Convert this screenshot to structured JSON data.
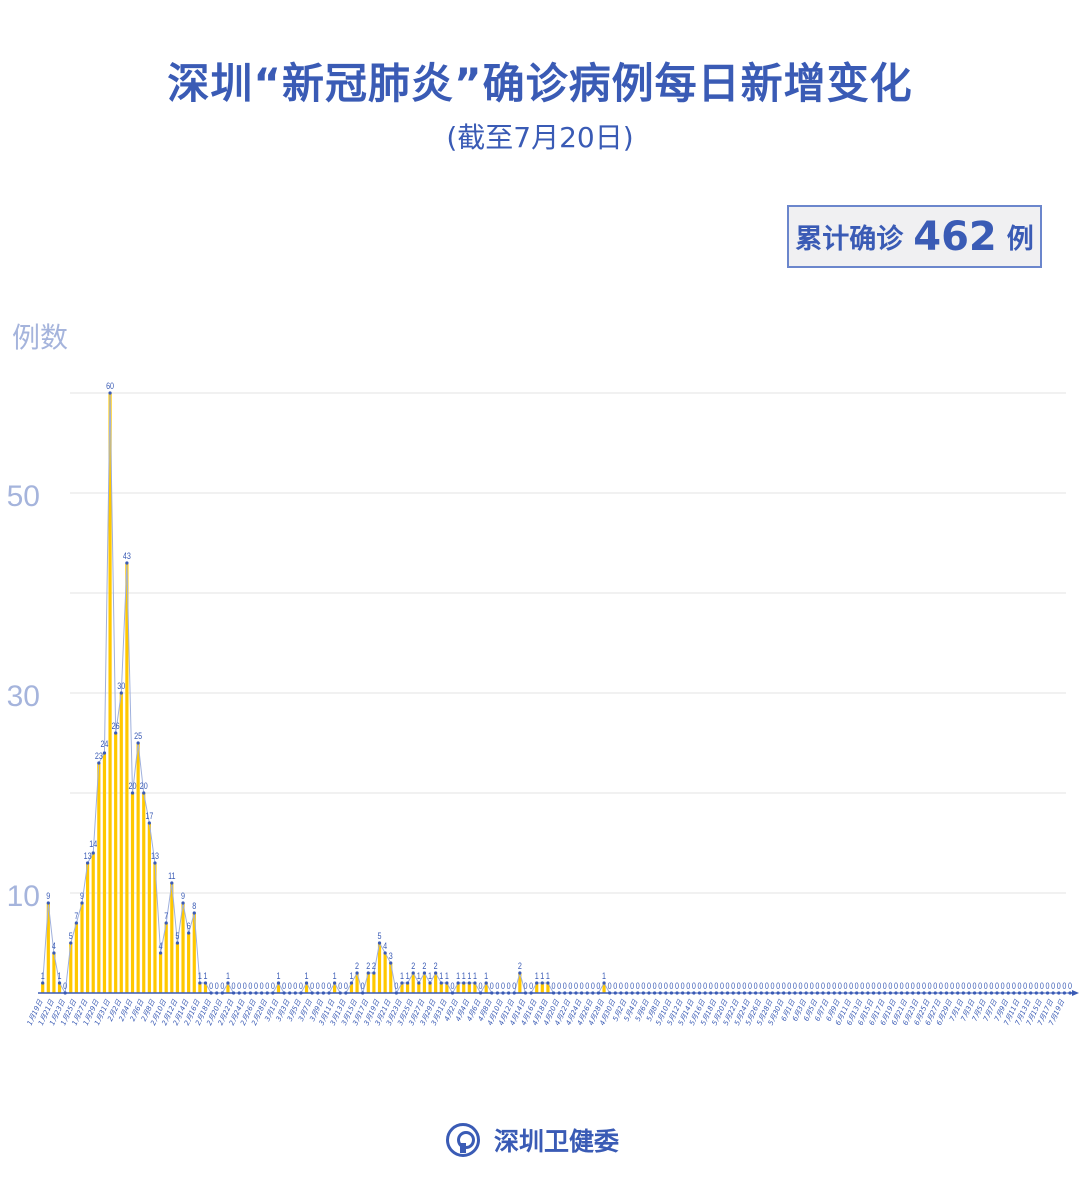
{
  "header": {
    "title": "深圳“新冠肺炎”确诊病例每日新增变化",
    "subtitle": "(截至7月20日)"
  },
  "total": {
    "label": "累计确诊",
    "value": "462",
    "unit": "例"
  },
  "footer": {
    "org": "深圳卫健委"
  },
  "colors": {
    "accent": "#3a5bb5",
    "bar": "#ffc800",
    "axis_text": "#a5b4dc",
    "grid": "#e3e3e3"
  },
  "chart_data": {
    "type": "bar",
    "ylabel": "例数",
    "ylim": [
      0,
      60
    ],
    "yticks": [
      10,
      30,
      50
    ],
    "grid": true,
    "categories": [
      "1月19日",
      "1月20日",
      "1月21日",
      "1月22日",
      "1月23日",
      "1月24日",
      "1月25日",
      "1月26日",
      "1月27日",
      "1月28日",
      "1月29日",
      "1月30日",
      "1月31日",
      "2月1日",
      "2月2日",
      "2月3日",
      "2月4日",
      "2月5日",
      "2月6日",
      "2月7日",
      "2月8日",
      "2月9日",
      "2月10日",
      "2月11日",
      "2月12日",
      "2月13日",
      "2月14日",
      "2月15日",
      "2月16日",
      "2月17日",
      "2月18日",
      "2月19日",
      "2月20日",
      "2月21日",
      "2月22日",
      "2月23日",
      "2月24日",
      "2月25日",
      "2月26日",
      "2月27日",
      "2月28日",
      "2月29日",
      "3月1日",
      "3月2日",
      "3月3日",
      "3月4日",
      "3月5日",
      "3月6日",
      "3月7日",
      "3月8日",
      "3月9日",
      "3月10日",
      "3月11日",
      "3月12日",
      "3月13日",
      "3月14日",
      "3月15日",
      "3月16日",
      "3月17日",
      "3月18日",
      "3月19日",
      "3月20日",
      "3月21日",
      "3月22日",
      "3月23日",
      "3月24日",
      "3月25日",
      "3月26日",
      "3月27日",
      "3月28日",
      "3月29日",
      "3月30日",
      "3月31日",
      "4月1日",
      "4月2日",
      "4月3日",
      "4月4日",
      "4月5日",
      "4月6日",
      "4月7日",
      "4月8日",
      "4月9日",
      "4月10日",
      "4月11日",
      "4月12日",
      "4月13日",
      "4月14日",
      "4月15日",
      "4月16日",
      "4月17日",
      "4月18日",
      "4月19日",
      "4月20日",
      "4月21日",
      "4月22日",
      "4月23日",
      "4月24日",
      "4月25日",
      "4月26日",
      "4月27日",
      "4月28日",
      "4月29日",
      "4月30日",
      "5月1日",
      "5月2日",
      "5月3日",
      "5月4日",
      "5月5日",
      "5月6日",
      "5月7日",
      "5月8日",
      "5月9日",
      "5月10日",
      "5月11日",
      "5月12日",
      "5月13日",
      "5月14日",
      "5月15日",
      "5月16日",
      "5月17日",
      "5月18日",
      "5月19日",
      "5月20日",
      "5月21日",
      "5月22日",
      "5月23日",
      "5月24日",
      "5月25日",
      "5月26日",
      "5月27日",
      "5月28日",
      "5月29日",
      "5月30日",
      "5月31日",
      "6月1日",
      "6月2日",
      "6月3日",
      "6月4日",
      "6月5日",
      "6月6日",
      "6月7日",
      "6月8日",
      "6月9日",
      "6月10日",
      "6月11日",
      "6月12日",
      "6月13日",
      "6月14日",
      "6月15日",
      "6月16日",
      "6月17日",
      "6月18日",
      "6月19日",
      "6月20日",
      "6月21日",
      "6月22日",
      "6月23日",
      "6月24日",
      "6月25日",
      "6月26日",
      "6月27日",
      "6月28日",
      "6月29日",
      "6月30日",
      "7月1日",
      "7月2日",
      "7月3日",
      "7月4日",
      "7月5日",
      "7月6日",
      "7月7日",
      "7月8日",
      "7月9日",
      "7月10日",
      "7月11日",
      "7月12日",
      "7月13日",
      "7月14日",
      "7月15日",
      "7月16日",
      "7月17日",
      "7月18日",
      "7月19日",
      "7月20日"
    ],
    "values": [
      1,
      9,
      4,
      1,
      0,
      5,
      7,
      9,
      13,
      14,
      23,
      24,
      60,
      26,
      30,
      43,
      20,
      25,
      20,
      17,
      13,
      4,
      7,
      11,
      5,
      9,
      6,
      8,
      1,
      1,
      0,
      0,
      0,
      1,
      0,
      0,
      0,
      0,
      0,
      0,
      0,
      0,
      1,
      0,
      0,
      0,
      0,
      1,
      0,
      0,
      0,
      0,
      1,
      0,
      0,
      1,
      2,
      0,
      2,
      2,
      5,
      4,
      3,
      0,
      1,
      1,
      2,
      1,
      2,
      1,
      2,
      1,
      1,
      0,
      1,
      1,
      1,
      1,
      0,
      1,
      0,
      0,
      0,
      0,
      0,
      2,
      0,
      0,
      1,
      1,
      1,
      0,
      0,
      0,
      0,
      0,
      0,
      0,
      0,
      0,
      1,
      0,
      0,
      0,
      0,
      0,
      0,
      0,
      0,
      0,
      0,
      0,
      0,
      0,
      0,
      0,
      0,
      0,
      0,
      0,
      0,
      0,
      0,
      0,
      0,
      0,
      0,
      0,
      0,
      0,
      0,
      0,
      0,
      0,
      0,
      0,
      0,
      0,
      0,
      0,
      0,
      0,
      0,
      0,
      0,
      0,
      0,
      0,
      0,
      0,
      0,
      0,
      0,
      0,
      0,
      0,
      0,
      0,
      0,
      0,
      0,
      0,
      0,
      0,
      0,
      0,
      0,
      0,
      0,
      0,
      0,
      0,
      0,
      0,
      0,
      0,
      0,
      0,
      0,
      0,
      0,
      0,
      0,
      0
    ]
  }
}
